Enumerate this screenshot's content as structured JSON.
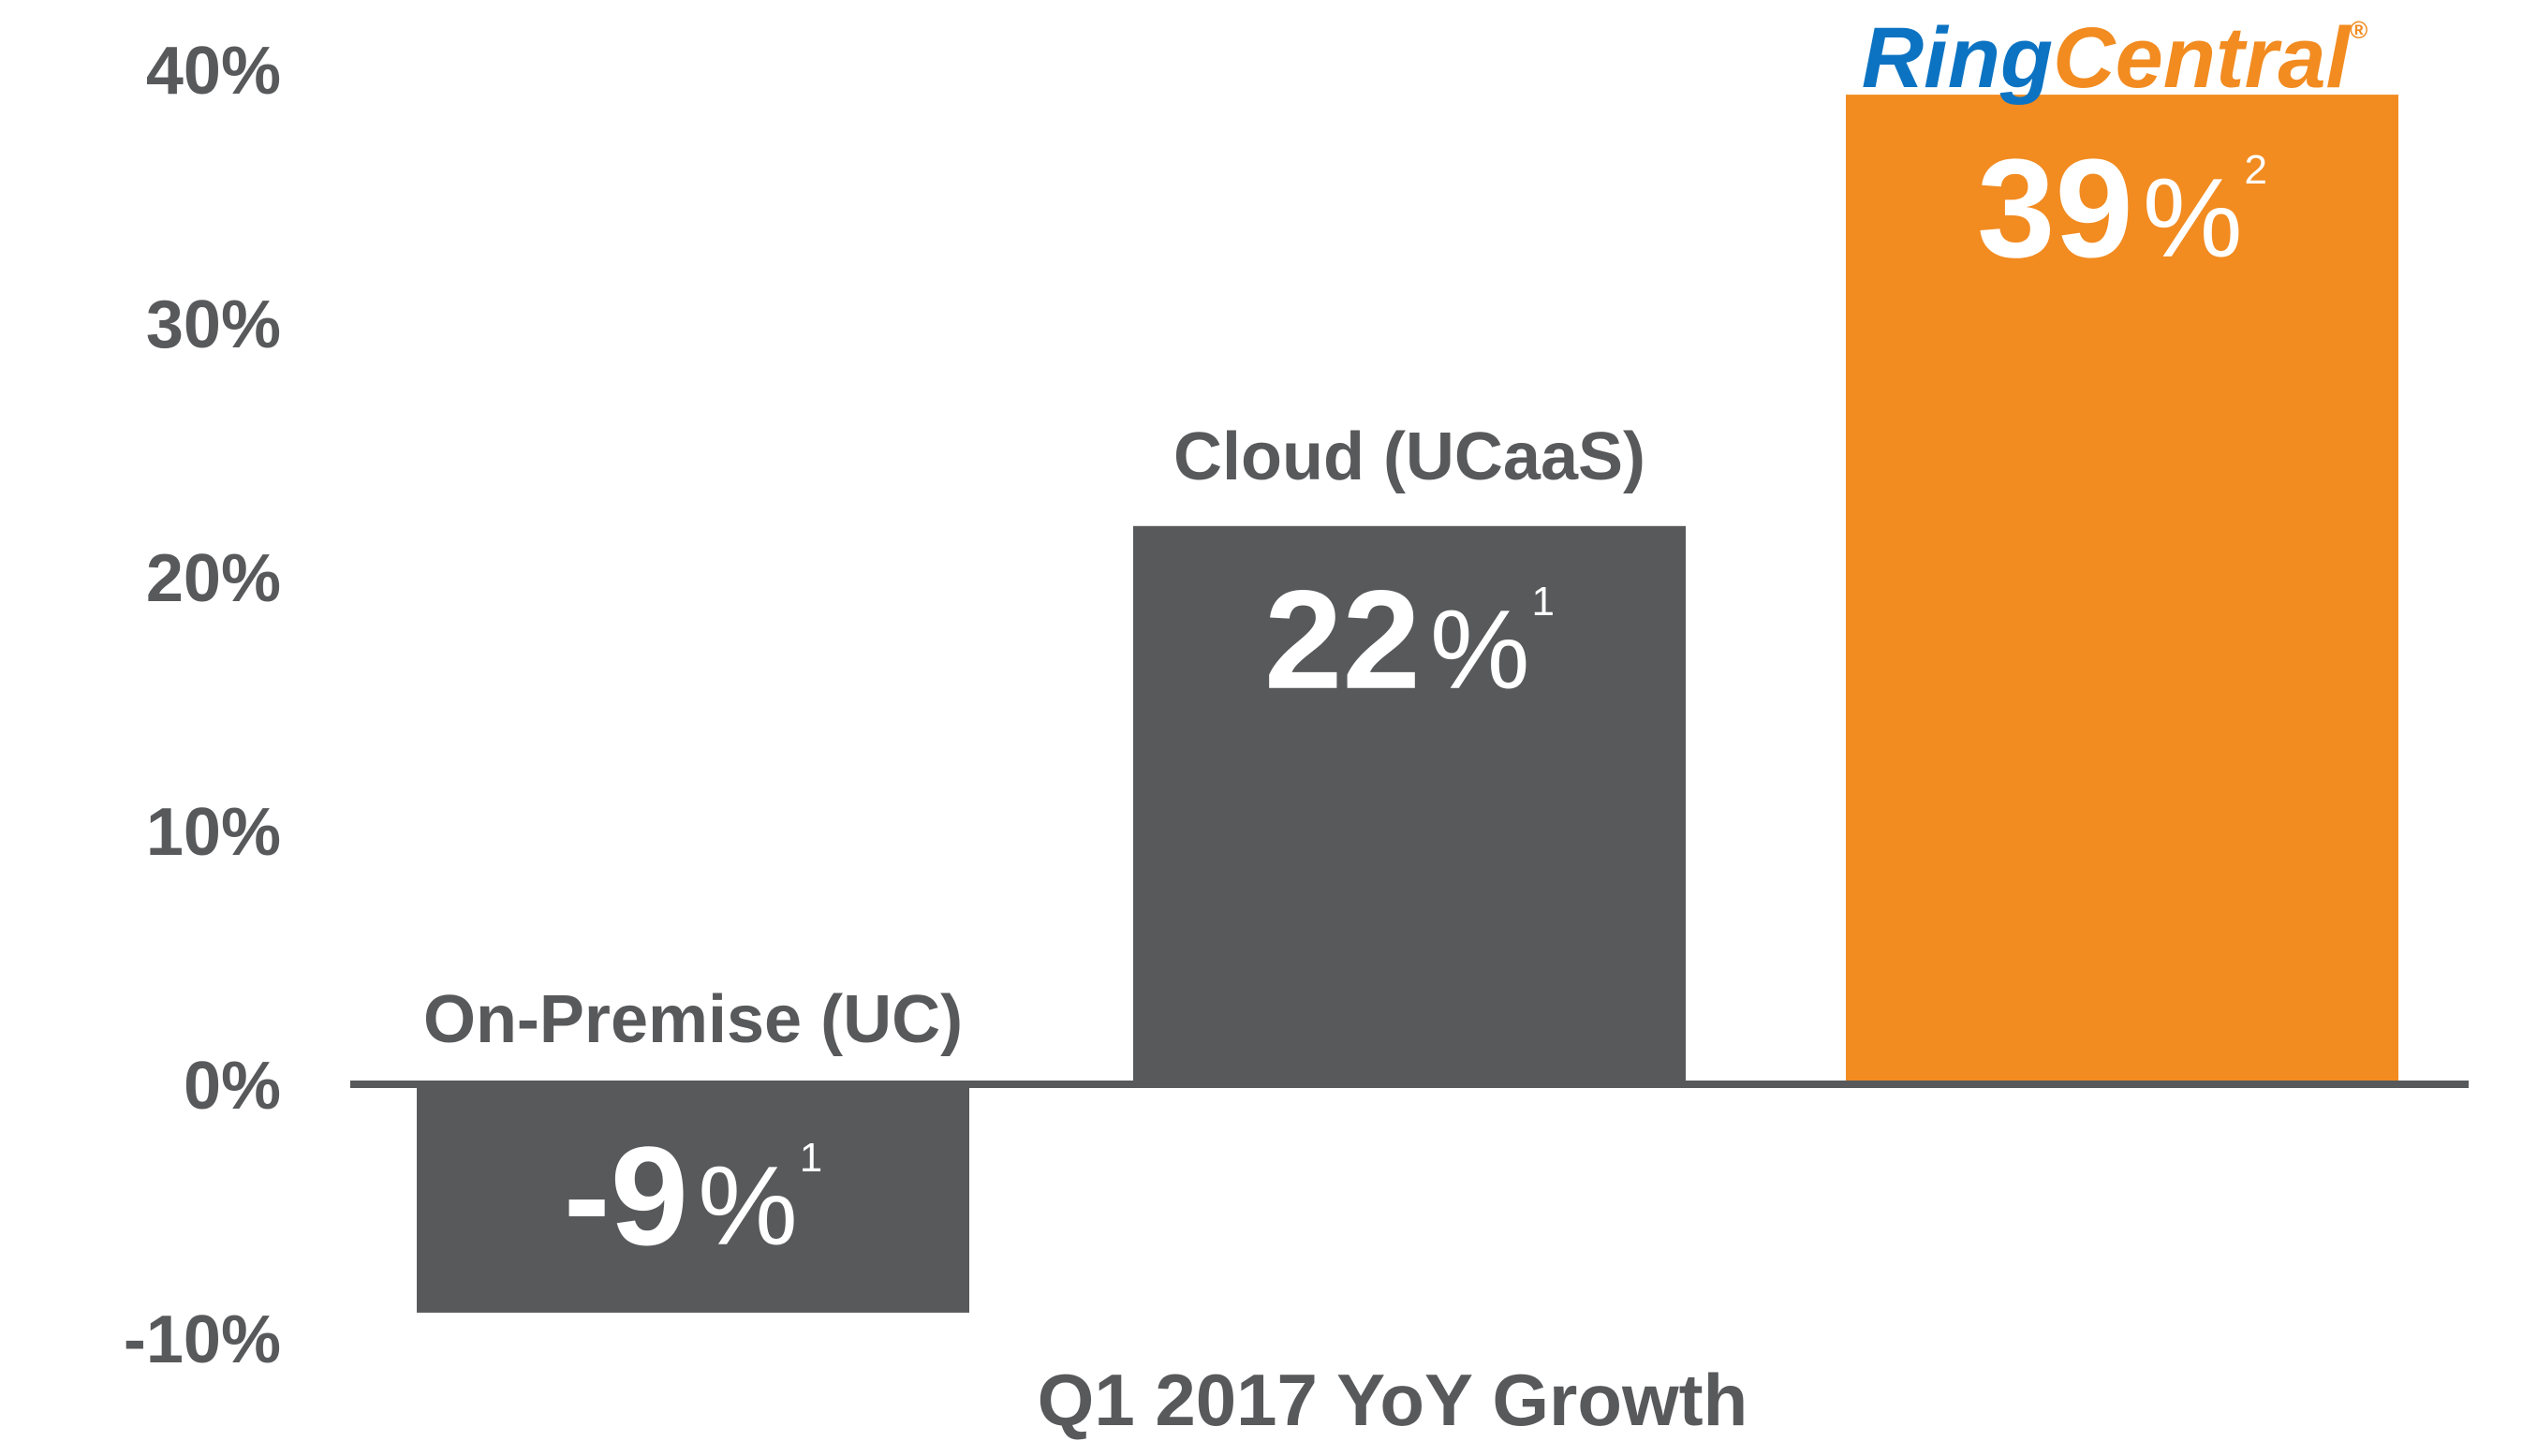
{
  "chart_data": {
    "type": "bar",
    "title": "",
    "xlabel": "Q1 2017 YoY Growth",
    "ylabel": "",
    "ylim": [
      -10,
      40
    ],
    "yticks": [
      40,
      30,
      20,
      10,
      0,
      -10
    ],
    "ytick_labels": [
      "40%",
      "30%",
      "20%",
      "10%",
      "0%",
      "-10%"
    ],
    "grid": false,
    "legend": "none",
    "categories": [
      "On-Premise (UC)",
      "Cloud (UCaaS)",
      "RingCentral"
    ],
    "values": [
      -9,
      22,
      39
    ],
    "bars": [
      {
        "category": "On-Premise (UC)",
        "value": -9,
        "value_label": "-9",
        "unit": "%",
        "footnote": "1",
        "color": "#58595b",
        "label_text": "On-Premise (UC)",
        "label_kind": "text"
      },
      {
        "category": "Cloud (UCaaS)",
        "value": 22,
        "value_label": "22",
        "unit": "%",
        "footnote": "1",
        "color": "#58595b",
        "label_text": "Cloud (UCaaS)",
        "label_kind": "text"
      },
      {
        "category": "RingCentral",
        "value": 39,
        "value_label": "39",
        "unit": "%",
        "footnote": "2",
        "color": "#f28b20",
        "label_text": "RingCentral",
        "label_kind": "logo"
      }
    ]
  },
  "logo": {
    "part1": "Ring",
    "part2": "Central",
    "mark": "®",
    "color_part1": "#0c73c2",
    "color_part2": "#f28b20"
  },
  "colors": {
    "axis_text": "#58595b",
    "baseline": "#58595b",
    "value_text": "#ffffff"
  }
}
